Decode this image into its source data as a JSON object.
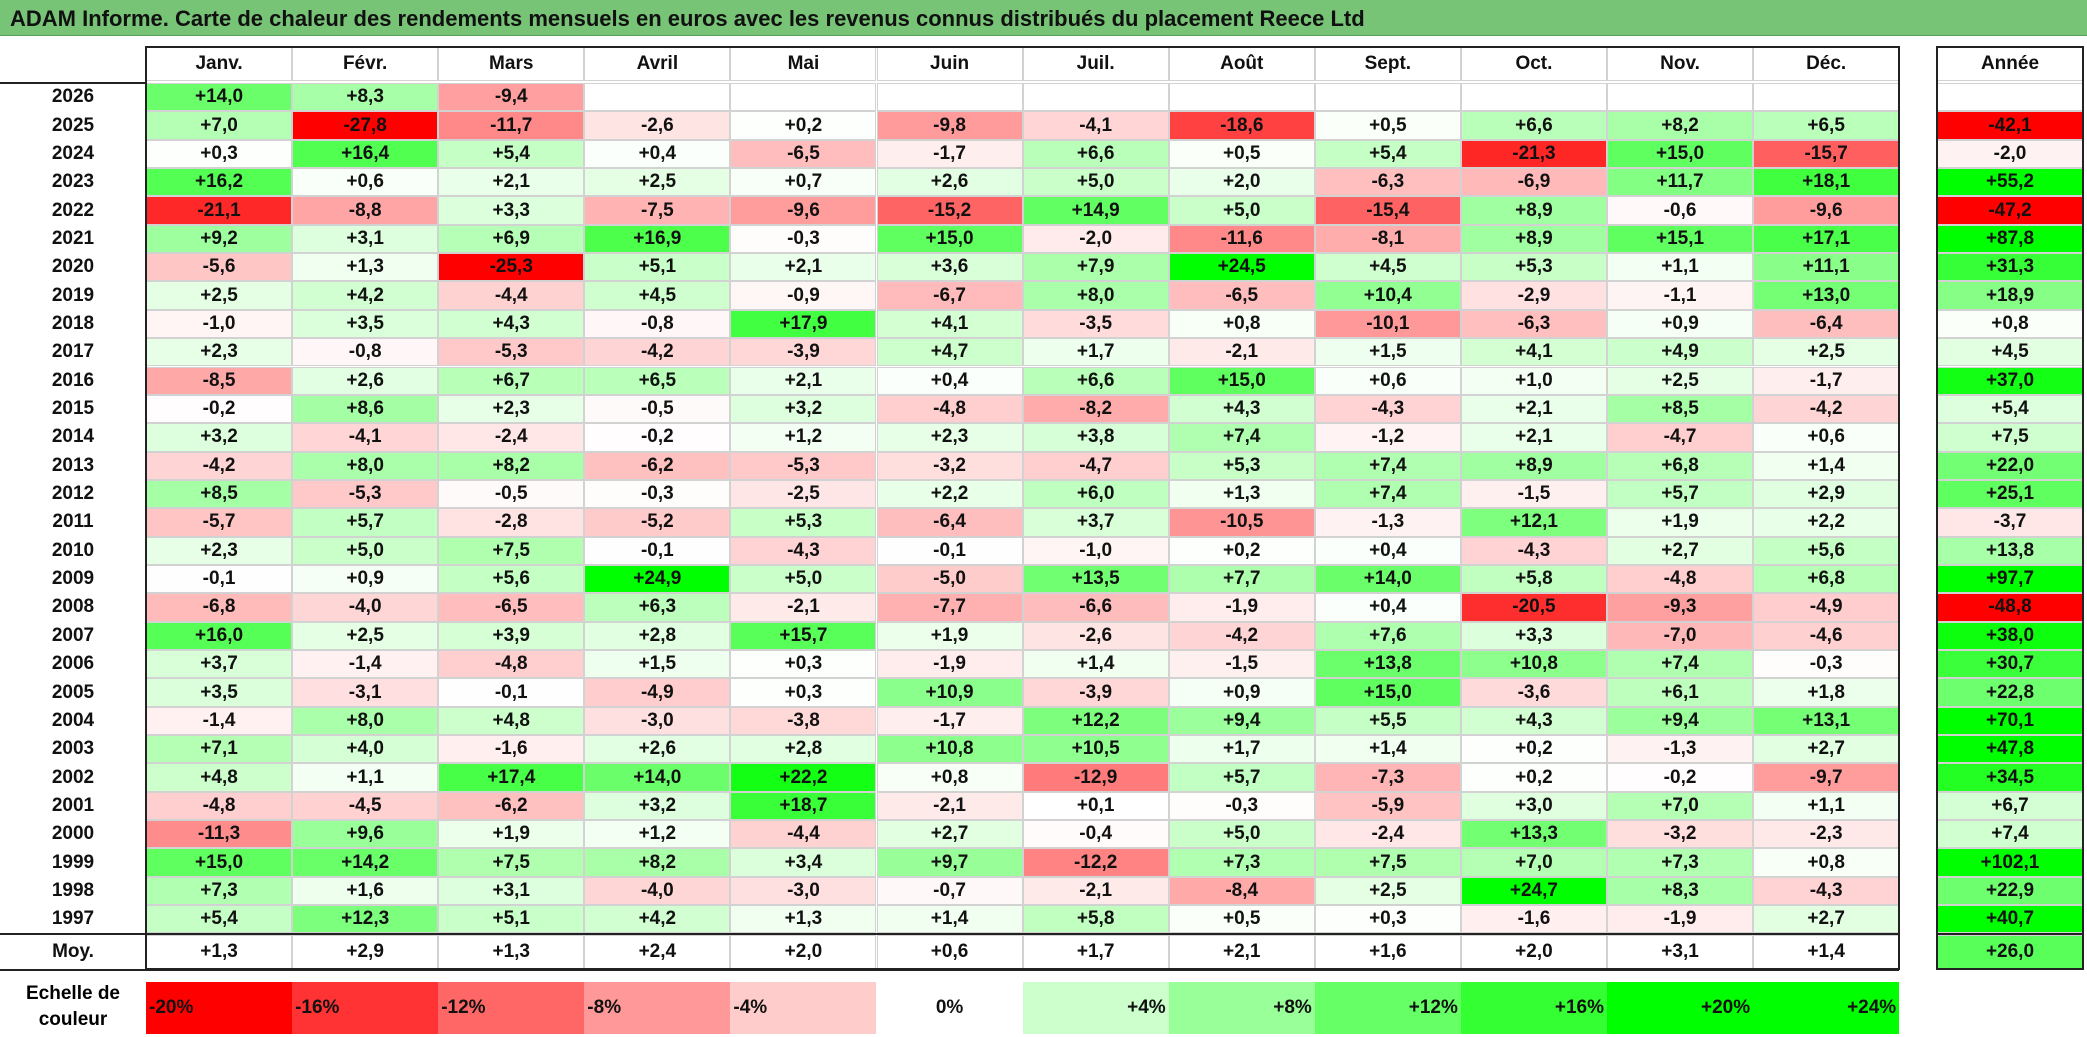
{
  "title": "ADAM Informe. Carte de chaleur des rendements mensuels en euros avec les revenus connus distribués du placement Reece Ltd",
  "chart_data": {
    "type": "heatmap",
    "title": "ADAM Informe. Carte de chaleur des rendements mensuels en euros avec les revenus connus distribués du placement Reece Ltd",
    "columns": [
      "Janv.",
      "Févr.",
      "Mars",
      "Avril",
      "Mai",
      "Juin",
      "Juil.",
      "Août",
      "Sept.",
      "Oct.",
      "Nov.",
      "Déc."
    ],
    "year_header": "Année",
    "rows": [
      {
        "year": "2026",
        "values": [
          "+14,0",
          "+8,3",
          "-9,4",
          "",
          "",
          "",
          "",
          "",
          "",
          "",
          "",
          ""
        ],
        "total": ""
      },
      {
        "year": "2025",
        "values": [
          "+7,0",
          "-27,8",
          "-11,7",
          "-2,6",
          "+0,2",
          "-9,8",
          "-4,1",
          "-18,6",
          "+0,5",
          "+6,6",
          "+8,2",
          "+6,5"
        ],
        "total": "-42,1"
      },
      {
        "year": "2024",
        "values": [
          "+0,3",
          "+16,4",
          "+5,4",
          "+0,4",
          "-6,5",
          "-1,7",
          "+6,6",
          "+0,5",
          "+5,4",
          "-21,3",
          "+15,0",
          "-15,7"
        ],
        "total": "-2,0"
      },
      {
        "year": "2023",
        "values": [
          "+16,2",
          "+0,6",
          "+2,1",
          "+2,5",
          "+0,7",
          "+2,6",
          "+5,0",
          "+2,0",
          "-6,3",
          "-6,9",
          "+11,7",
          "+18,1"
        ],
        "total": "+55,2"
      },
      {
        "year": "2022",
        "values": [
          "-21,1",
          "-8,8",
          "+3,3",
          "-7,5",
          "-9,6",
          "-15,2",
          "+14,9",
          "+5,0",
          "-15,4",
          "+8,9",
          "-0,6",
          "-9,6"
        ],
        "total": "-47,2"
      },
      {
        "year": "2021",
        "values": [
          "+9,2",
          "+3,1",
          "+6,9",
          "+16,9",
          "-0,3",
          "+15,0",
          "-2,0",
          "-11,6",
          "-8,1",
          "+8,9",
          "+15,1",
          "+17,1"
        ],
        "total": "+87,8"
      },
      {
        "year": "2020",
        "values": [
          "-5,6",
          "+1,3",
          "-25,3",
          "+5,1",
          "+2,1",
          "+3,6",
          "+7,9",
          "+24,5",
          "+4,5",
          "+5,3",
          "+1,1",
          "+11,1"
        ],
        "total": "+31,3"
      },
      {
        "year": "2019",
        "values": [
          "+2,5",
          "+4,2",
          "-4,4",
          "+4,5",
          "-0,9",
          "-6,7",
          "+8,0",
          "-6,5",
          "+10,4",
          "-2,9",
          "-1,1",
          "+13,0"
        ],
        "total": "+18,9"
      },
      {
        "year": "2018",
        "values": [
          "-1,0",
          "+3,5",
          "+4,3",
          "-0,8",
          "+17,9",
          "+4,1",
          "-3,5",
          "+0,8",
          "-10,1",
          "-6,3",
          "+0,9",
          "-6,4"
        ],
        "total": "+0,8"
      },
      {
        "year": "2017",
        "values": [
          "+2,3",
          "-0,8",
          "-5,3",
          "-4,2",
          "-3,9",
          "+4,7",
          "+1,7",
          "-2,1",
          "+1,5",
          "+4,1",
          "+4,9",
          "+2,5"
        ],
        "total": "+4,5"
      },
      {
        "year": "2016",
        "values": [
          "-8,5",
          "+2,6",
          "+6,7",
          "+6,5",
          "+2,1",
          "+0,4",
          "+6,6",
          "+15,0",
          "+0,6",
          "+1,0",
          "+2,5",
          "-1,7"
        ],
        "total": "+37,0"
      },
      {
        "year": "2015",
        "values": [
          "-0,2",
          "+8,6",
          "+2,3",
          "-0,5",
          "+3,2",
          "-4,8",
          "-8,2",
          "+4,3",
          "-4,3",
          "+2,1",
          "+8,5",
          "-4,2"
        ],
        "total": "+5,4"
      },
      {
        "year": "2014",
        "values": [
          "+3,2",
          "-4,1",
          "-2,4",
          "-0,2",
          "+1,2",
          "+2,3",
          "+3,8",
          "+7,4",
          "-1,2",
          "+2,1",
          "-4,7",
          "+0,6"
        ],
        "total": "+7,5"
      },
      {
        "year": "2013",
        "values": [
          "-4,2",
          "+8,0",
          "+8,2",
          "-6,2",
          "-5,3",
          "-3,2",
          "-4,7",
          "+5,3",
          "+7,4",
          "+8,9",
          "+6,8",
          "+1,4"
        ],
        "total": "+22,0"
      },
      {
        "year": "2012",
        "values": [
          "+8,5",
          "-5,3",
          "-0,5",
          "-0,3",
          "-2,5",
          "+2,2",
          "+6,0",
          "+1,3",
          "+7,4",
          "-1,5",
          "+5,7",
          "+2,9"
        ],
        "total": "+25,1"
      },
      {
        "year": "2011",
        "values": [
          "-5,7",
          "+5,7",
          "-2,8",
          "-5,2",
          "+5,3",
          "-6,4",
          "+3,7",
          "-10,5",
          "-1,3",
          "+12,1",
          "+1,9",
          "+2,2"
        ],
        "total": "-3,7"
      },
      {
        "year": "2010",
        "values": [
          "+2,3",
          "+5,0",
          "+7,5",
          "-0,1",
          "-4,3",
          "-0,1",
          "-1,0",
          "+0,2",
          "+0,4",
          "-4,3",
          "+2,7",
          "+5,6"
        ],
        "total": "+13,8"
      },
      {
        "year": "2009",
        "values": [
          "-0,1",
          "+0,9",
          "+5,6",
          "+24,9",
          "+5,0",
          "-5,0",
          "+13,5",
          "+7,7",
          "+14,0",
          "+5,8",
          "-4,8",
          "+6,8"
        ],
        "total": "+97,7"
      },
      {
        "year": "2008",
        "values": [
          "-6,8",
          "-4,0",
          "-6,5",
          "+6,3",
          "-2,1",
          "-7,7",
          "-6,6",
          "-1,9",
          "+0,4",
          "-20,5",
          "-9,3",
          "-4,9"
        ],
        "total": "-48,8"
      },
      {
        "year": "2007",
        "values": [
          "+16,0",
          "+2,5",
          "+3,9",
          "+2,8",
          "+15,7",
          "+1,9",
          "-2,6",
          "-4,2",
          "+7,6",
          "+3,3",
          "-7,0",
          "-4,6"
        ],
        "total": "+38,0"
      },
      {
        "year": "2006",
        "values": [
          "+3,7",
          "-1,4",
          "-4,8",
          "+1,5",
          "+0,3",
          "-1,9",
          "+1,4",
          "-1,5",
          "+13,8",
          "+10,8",
          "+7,4",
          "-0,3"
        ],
        "total": "+30,7"
      },
      {
        "year": "2005",
        "values": [
          "+3,5",
          "-3,1",
          "-0,1",
          "-4,9",
          "+0,3",
          "+10,9",
          "-3,9",
          "+0,9",
          "+15,0",
          "-3,6",
          "+6,1",
          "+1,8"
        ],
        "total": "+22,8"
      },
      {
        "year": "2004",
        "values": [
          "-1,4",
          "+8,0",
          "+4,8",
          "-3,0",
          "-3,8",
          "-1,7",
          "+12,2",
          "+9,4",
          "+5,5",
          "+4,3",
          "+9,4",
          "+13,1"
        ],
        "total": "+70,1"
      },
      {
        "year": "2003",
        "values": [
          "+7,1",
          "+4,0",
          "-1,6",
          "+2,6",
          "+2,8",
          "+10,8",
          "+10,5",
          "+1,7",
          "+1,4",
          "+0,2",
          "-1,3",
          "+2,7"
        ],
        "total": "+47,8"
      },
      {
        "year": "2002",
        "values": [
          "+4,8",
          "+1,1",
          "+17,4",
          "+14,0",
          "+22,2",
          "+0,8",
          "-12,9",
          "+5,7",
          "-7,3",
          "+0,2",
          "-0,2",
          "-9,7"
        ],
        "total": "+34,5"
      },
      {
        "year": "2001",
        "values": [
          "-4,8",
          "-4,5",
          "-6,2",
          "+3,2",
          "+18,7",
          "-2,1",
          "+0,1",
          "-0,3",
          "-5,9",
          "+3,0",
          "+7,0",
          "+1,1"
        ],
        "total": "+6,7"
      },
      {
        "year": "2000",
        "values": [
          "-11,3",
          "+9,6",
          "+1,9",
          "+1,2",
          "-4,4",
          "+2,7",
          "-0,4",
          "+5,0",
          "-2,4",
          "+13,3",
          "-3,2",
          "-2,3"
        ],
        "total": "+7,4"
      },
      {
        "year": "1999",
        "values": [
          "+15,0",
          "+14,2",
          "+7,5",
          "+8,2",
          "+3,4",
          "+9,7",
          "-12,2",
          "+7,3",
          "+7,5",
          "+7,0",
          "+7,3",
          "+0,8"
        ],
        "total": "+102,1"
      },
      {
        "year": "1998",
        "values": [
          "+7,3",
          "+1,6",
          "+3,1",
          "-4,0",
          "-3,0",
          "-0,7",
          "-2,1",
          "-8,4",
          "+2,5",
          "+24,7",
          "+8,3",
          "-4,3"
        ],
        "total": "+22,9"
      },
      {
        "year": "1997",
        "values": [
          "+5,4",
          "+12,3",
          "+5,1",
          "+4,2",
          "+1,3",
          "+1,4",
          "+5,8",
          "+0,5",
          "+0,3",
          "-1,6",
          "-1,9",
          "+2,7"
        ],
        "total": "+40,7"
      }
    ],
    "average": {
      "label": "Moy.",
      "values": [
        "+1,3",
        "+2,9",
        "+1,3",
        "+2,4",
        "+2,0",
        "+0,6",
        "+1,7",
        "+2,1",
        "+1,6",
        "+2,0",
        "+3,1",
        "+1,4"
      ],
      "total": "+26,0"
    },
    "color_scale": {
      "label": "Echelle de couleur",
      "steps": [
        {
          "label": "-20%",
          "value": -20,
          "color": "#ff0000"
        },
        {
          "label": "-16%",
          "value": -16,
          "color": "#ff3333"
        },
        {
          "label": "-12%",
          "value": -12,
          "color": "#ff6666"
        },
        {
          "label": "-8%",
          "value": -8,
          "color": "#ff9999"
        },
        {
          "label": "-4%",
          "value": -4,
          "color": "#ffcccc"
        },
        {
          "label": "0%",
          "value": 0,
          "color": "#ffffff"
        },
        {
          "label": "+4%",
          "value": 4,
          "color": "#ccffcc"
        },
        {
          "label": "+8%",
          "value": 8,
          "color": "#99ff99"
        },
        {
          "label": "+12%",
          "value": 12,
          "color": "#66ff66"
        },
        {
          "label": "+16%",
          "value": 16,
          "color": "#33ff33"
        },
        {
          "label": "+20%",
          "value": 20,
          "color": "#00ff00"
        },
        {
          "label": "+24%",
          "value": 24,
          "color": "#00ff00"
        }
      ]
    }
  }
}
